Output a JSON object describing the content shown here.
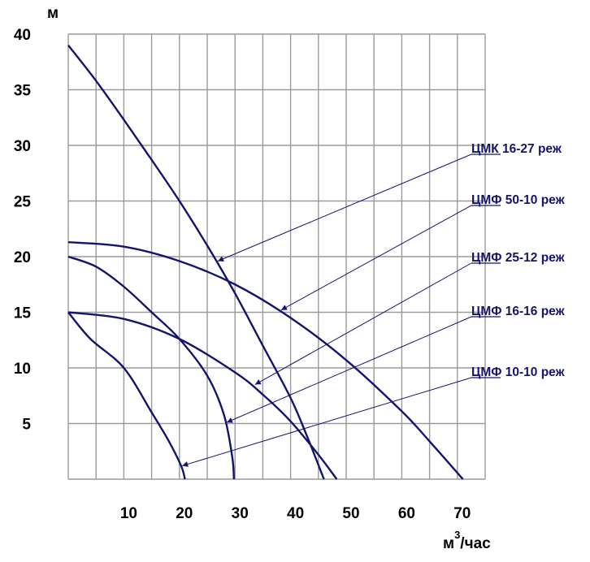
{
  "chart_data": {
    "type": "line",
    "title": "",
    "xlabel": "м",
    "xlabel_sup": "3",
    "xlabel_rest": "/час",
    "ylabel": "м",
    "xlim": [
      0,
      75
    ],
    "ylim": [
      0,
      40
    ],
    "grid": true,
    "grid_step_x": 5,
    "grid_step_y": 5,
    "x_ticks": [
      10,
      20,
      30,
      40,
      50,
      60,
      70
    ],
    "y_ticks": [
      5,
      10,
      15,
      20,
      25,
      30,
      35,
      40
    ],
    "line_color": "#14146e",
    "grid_color": "#9a9a9a",
    "legend_placement": "right, labels with leader arrows",
    "series": [
      {
        "name": "ЦМК 16-27 реж",
        "arrow_to": [
          26.9,
          19.6
        ],
        "points": [
          [
            0,
            39
          ],
          [
            5,
            35.8
          ],
          [
            10,
            32.3
          ],
          [
            15,
            28.7
          ],
          [
            20,
            25
          ],
          [
            25,
            21
          ],
          [
            30,
            16.7
          ],
          [
            35,
            12
          ],
          [
            40,
            7.3
          ],
          [
            43,
            3.8
          ],
          [
            46,
            0
          ]
        ]
      },
      {
        "name": "ЦМФ 50-10 реж",
        "arrow_to": [
          38.3,
          15.2
        ],
        "points": [
          [
            0,
            21.3
          ],
          [
            10,
            20.9
          ],
          [
            20,
            19.6
          ],
          [
            30,
            17.5
          ],
          [
            40,
            14.5
          ],
          [
            50,
            10.7
          ],
          [
            60,
            6.1
          ],
          [
            65,
            3.4
          ],
          [
            71,
            0
          ]
        ]
      },
      {
        "name": "ЦМФ 25-12 реж",
        "arrow_to": [
          33.6,
          8.5
        ],
        "points": [
          [
            0,
            15
          ],
          [
            10,
            14.4
          ],
          [
            20,
            12.6
          ],
          [
            30,
            9.6
          ],
          [
            35,
            7.6
          ],
          [
            40,
            5.2
          ],
          [
            45,
            2.2
          ],
          [
            48.3,
            0
          ]
        ]
      },
      {
        "name": "ЦМФ 16-16 реж",
        "arrow_to": [
          28.5,
          5.1
        ],
        "points": [
          [
            0,
            20
          ],
          [
            5,
            19.1
          ],
          [
            10,
            17.3
          ],
          [
            15,
            15
          ],
          [
            20,
            12.6
          ],
          [
            25,
            9.3
          ],
          [
            28,
            5.8
          ],
          [
            29.5,
            2
          ],
          [
            29.8,
            0
          ]
        ]
      },
      {
        "name": "ЦМФ 10-10 реж",
        "arrow_to": [
          20.5,
          1.2
        ],
        "points": [
          [
            0,
            15
          ],
          [
            4,
            12.6
          ],
          [
            10,
            10
          ],
          [
            15,
            6
          ],
          [
            18,
            3.5
          ],
          [
            20.3,
            1.2
          ],
          [
            21,
            0
          ]
        ]
      }
    ]
  }
}
